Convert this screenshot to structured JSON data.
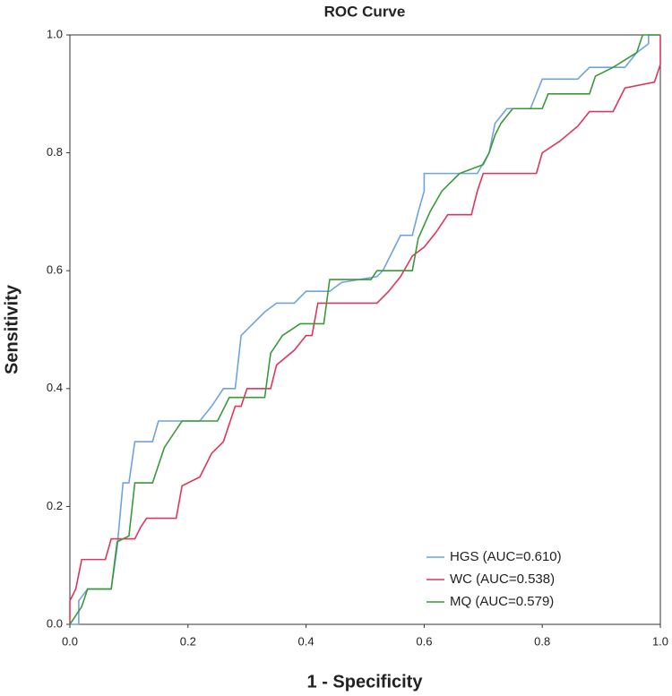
{
  "chart_data": {
    "type": "line",
    "title": "ROC Curve",
    "x_label": "1 - Specificity",
    "y_label": "Sensitivity",
    "xlim": [
      0,
      1
    ],
    "ylim": [
      0,
      1
    ],
    "xticks": [
      {
        "value": 0,
        "label": "0.0"
      },
      0.2,
      0.4,
      0.6,
      0.8,
      {
        "value": 1,
        "label": "1.0"
      }
    ],
    "yticks": [
      {
        "value": 0,
        "label": "0.0"
      },
      0.2,
      0.4,
      0.6,
      0.8,
      {
        "value": 1,
        "label": "1.0"
      }
    ],
    "grid": false,
    "legend": "lower right",
    "series": [
      {
        "name": "HGS (AUC=0.610)",
        "color": "#6fa3e0",
        "x": [
          0,
          0.015,
          0.015,
          0.03,
          0.07,
          0.08,
          0.09,
          0.1,
          0.11,
          0.14,
          0.15,
          0.22,
          0.24,
          0.26,
          0.28,
          0.29,
          0.31,
          0.33,
          0.35,
          0.38,
          0.4,
          0.44,
          0.46,
          0.52,
          0.53,
          0.54,
          0.56,
          0.58,
          0.59,
          0.6,
          0.6,
          0.69,
          0.71,
          0.72,
          0.74,
          0.78,
          0.8,
          0.86,
          0.88,
          0.94,
          0.96,
          0.98,
          0.98,
          1
        ],
        "values": [
          0,
          0,
          0.04,
          0.06,
          0.06,
          0.13,
          0.24,
          0.24,
          0.31,
          0.31,
          0.345,
          0.345,
          0.37,
          0.4,
          0.4,
          0.49,
          0.51,
          0.53,
          0.545,
          0.545,
          0.565,
          0.565,
          0.58,
          0.59,
          0.6,
          0.62,
          0.66,
          0.66,
          0.7,
          0.735,
          0.765,
          0.765,
          0.8,
          0.85,
          0.875,
          0.875,
          0.925,
          0.925,
          0.945,
          0.945,
          0.97,
          0.985,
          1,
          1
        ]
      },
      {
        "name": "WC (AUC=0.538)",
        "color": "#e0365c",
        "x": [
          0,
          0,
          0.01,
          0.02,
          0.06,
          0.07,
          0.11,
          0.12,
          0.13,
          0.18,
          0.19,
          0.22,
          0.24,
          0.26,
          0.28,
          0.29,
          0.3,
          0.34,
          0.35,
          0.38,
          0.4,
          0.41,
          0.42,
          0.52,
          0.54,
          0.56,
          0.58,
          0.6,
          0.62,
          0.64,
          0.68,
          0.69,
          0.7,
          0.79,
          0.8,
          0.83,
          0.86,
          0.88,
          0.92,
          0.94,
          0.99,
          1,
          1
        ],
        "values": [
          0,
          0.04,
          0.06,
          0.11,
          0.11,
          0.145,
          0.145,
          0.165,
          0.18,
          0.18,
          0.235,
          0.25,
          0.29,
          0.31,
          0.37,
          0.37,
          0.4,
          0.4,
          0.44,
          0.465,
          0.49,
          0.49,
          0.545,
          0.545,
          0.565,
          0.59,
          0.625,
          0.64,
          0.665,
          0.695,
          0.695,
          0.735,
          0.765,
          0.765,
          0.8,
          0.82,
          0.845,
          0.87,
          0.87,
          0.91,
          0.92,
          0.95,
          1
        ]
      },
      {
        "name": "MQ (AUC=0.579)",
        "color": "#3a9a3a",
        "x": [
          0,
          0.02,
          0.03,
          0.07,
          0.08,
          0.1,
          0.11,
          0.14,
          0.16,
          0.19,
          0.25,
          0.27,
          0.33,
          0.34,
          0.36,
          0.39,
          0.43,
          0.44,
          0.51,
          0.52,
          0.58,
          0.59,
          0.61,
          0.63,
          0.66,
          0.7,
          0.71,
          0.72,
          0.73,
          0.75,
          0.8,
          0.81,
          0.88,
          0.89,
          0.92,
          0.96,
          0.97,
          1
        ],
        "values": [
          0,
          0.03,
          0.06,
          0.06,
          0.14,
          0.15,
          0.24,
          0.24,
          0.3,
          0.345,
          0.345,
          0.385,
          0.385,
          0.46,
          0.49,
          0.51,
          0.51,
          0.585,
          0.585,
          0.6,
          0.6,
          0.655,
          0.7,
          0.735,
          0.765,
          0.78,
          0.8,
          0.83,
          0.85,
          0.875,
          0.875,
          0.9,
          0.9,
          0.93,
          0.945,
          0.97,
          1,
          1
        ]
      }
    ]
  }
}
